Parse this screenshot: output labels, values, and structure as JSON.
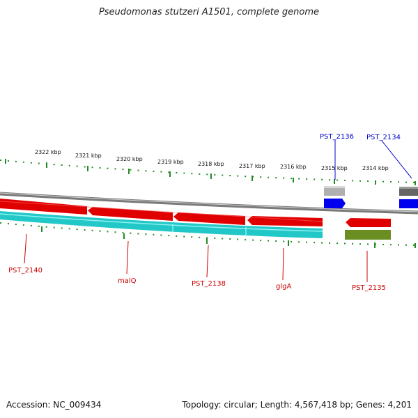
{
  "title": "Pseudomonas stutzeri A1501, complete genome",
  "footer": {
    "accession": "Accession: NC_009434",
    "summary": "Topology: circular; Length: 4,567,418 bp; Genes: 4,201"
  },
  "scale_labels": [
    "2322 kbp",
    "2321 kbp",
    "2320 kbp",
    "2319 kbp",
    "2318 kbp",
    "2317 kbp",
    "2316 kbp",
    "2315 kbp",
    "2314 kbp"
  ],
  "colors": {
    "backbone": "#8a8a8a",
    "gene_forward_red": "#e00000",
    "cds_cyan": "#22c8c8",
    "olive": "#6b8e23",
    "blue_feature": "#0000ee",
    "tick_green": "#228b22",
    "label_red": "#cc0000",
    "label_blue": "#0000cc"
  },
  "gene_labels": {
    "PST_2140": "PST_2140",
    "malQ": "malQ",
    "PST_2138": "PST_2138",
    "glgA": "glgA",
    "PST_2135": "PST_2135",
    "PST_2136": "PST_2136",
    "PST_2134": "PST_2134"
  }
}
